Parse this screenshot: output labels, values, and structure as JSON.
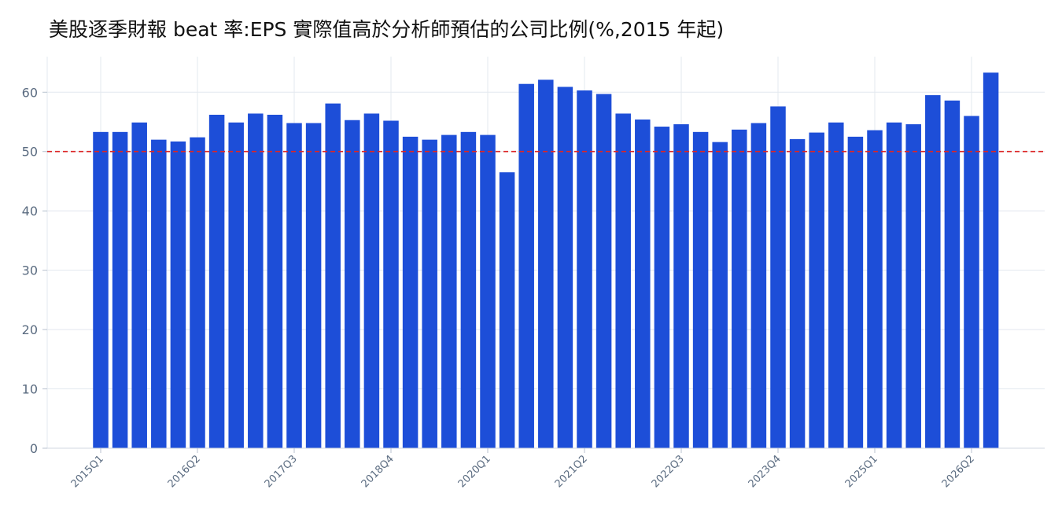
{
  "chart_data": {
    "type": "bar",
    "title": "美股逐季財報 beat 率:EPS 實際值高於分析師預估的公司比例(%,2015 年起)",
    "xlabel": "",
    "ylabel": "",
    "ylim": [
      0,
      66
    ],
    "yticks": [
      0,
      10,
      20,
      30,
      40,
      50,
      60
    ],
    "grid": true,
    "reference_line": {
      "value": 50,
      "color": "#dc2626",
      "style": "dashed"
    },
    "bar_color": "#1d4ed8",
    "categories": [
      "2015Q1",
      "2015Q2",
      "2015Q3",
      "2015Q4",
      "2016Q1",
      "2016Q2",
      "2016Q3",
      "2016Q4",
      "2017Q1",
      "2017Q2",
      "2017Q3",
      "2017Q4",
      "2018Q1",
      "2018Q2",
      "2018Q3",
      "2018Q4",
      "2019Q1",
      "2019Q2",
      "2019Q3",
      "2019Q4",
      "2020Q1",
      "2020Q2",
      "2020Q3",
      "2020Q4",
      "2021Q1",
      "2021Q2",
      "2021Q3",
      "2021Q4",
      "2022Q1",
      "2022Q2",
      "2022Q3",
      "2022Q4",
      "2023Q1",
      "2023Q2",
      "2023Q3",
      "2023Q4",
      "2024Q1",
      "2024Q2",
      "2024Q3",
      "2024Q4",
      "2025Q1",
      "2025Q2",
      "2025Q3",
      "2025Q4",
      "2026Q1",
      "2026Q2",
      "2026Q3"
    ],
    "tick_labels": [
      "2015Q1",
      "2016Q2",
      "2017Q3",
      "2018Q4",
      "2020Q1",
      "2021Q2",
      "2022Q3",
      "2023Q4",
      "2025Q1",
      "2026Q2"
    ],
    "values": [
      53.3,
      53.3,
      54.9,
      52.0,
      51.7,
      52.4,
      56.2,
      54.9,
      56.4,
      56.2,
      54.8,
      54.8,
      58.1,
      55.3,
      56.4,
      55.2,
      52.5,
      52.0,
      52.8,
      53.3,
      52.8,
      46.5,
      61.4,
      62.1,
      60.9,
      60.3,
      59.7,
      56.4,
      55.4,
      54.2,
      54.6,
      53.3,
      51.6,
      53.7,
      54.8,
      57.6,
      52.1,
      53.2,
      54.9,
      52.5,
      53.6,
      54.9,
      54.6,
      59.5,
      58.6,
      56.0,
      63.3
    ]
  }
}
